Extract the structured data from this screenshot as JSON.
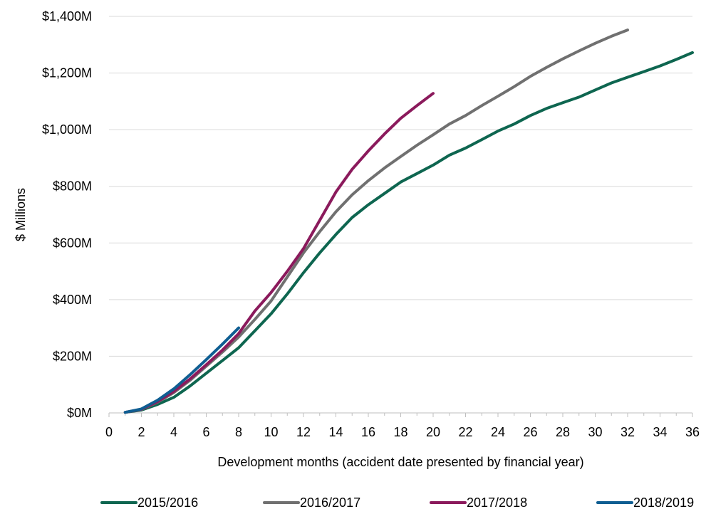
{
  "chart_data": {
    "type": "line",
    "title": "",
    "xlabel": "Development months (accident date presented by financial year)",
    "ylabel": "$ Millions",
    "xlim": [
      0,
      36
    ],
    "ylim": [
      0,
      1400
    ],
    "x_ticks": [
      0,
      2,
      4,
      6,
      8,
      10,
      12,
      14,
      16,
      18,
      20,
      22,
      24,
      26,
      28,
      30,
      32,
      34,
      36
    ],
    "y_ticks": [
      0,
      200,
      400,
      600,
      800,
      1000,
      1200,
      1400
    ],
    "y_tick_labels": [
      "$0M",
      "$200M",
      "$400M",
      "$600M",
      "$800M",
      "$1,000M",
      "$1,200M",
      "$1,400M"
    ],
    "grid": "horizontal",
    "legend_position": "bottom",
    "series": [
      {
        "name": "2015/2016",
        "color": "#0E6650",
        "x": [
          1,
          2,
          3,
          4,
          5,
          6,
          7,
          8,
          9,
          10,
          11,
          12,
          13,
          14,
          15,
          16,
          17,
          18,
          19,
          20,
          21,
          22,
          23,
          24,
          25,
          26,
          27,
          28,
          29,
          30,
          31,
          32,
          33,
          34,
          35,
          36
        ],
        "values": [
          2,
          10,
          30,
          55,
          95,
          140,
          185,
          230,
          290,
          350,
          420,
          495,
          565,
          630,
          690,
          735,
          775,
          815,
          845,
          875,
          910,
          935,
          965,
          995,
          1020,
          1050,
          1075,
          1095,
          1115,
          1140,
          1165,
          1185,
          1205,
          1225,
          1248,
          1272
        ]
      },
      {
        "name": "2016/2017",
        "color": "#707070",
        "x": [
          1,
          2,
          3,
          4,
          5,
          6,
          7,
          8,
          9,
          10,
          11,
          12,
          13,
          14,
          15,
          16,
          17,
          18,
          19,
          20,
          21,
          22,
          23,
          24,
          25,
          26,
          27,
          28,
          29,
          30,
          31,
          32
        ],
        "values": [
          2,
          12,
          38,
          72,
          115,
          165,
          215,
          268,
          330,
          395,
          480,
          565,
          640,
          710,
          770,
          820,
          865,
          905,
          945,
          982,
          1020,
          1050,
          1085,
          1118,
          1152,
          1188,
          1220,
          1250,
          1278,
          1305,
          1330,
          1352
        ]
      },
      {
        "name": "2017/2018",
        "color": "#8B1A5C",
        "x": [
          1,
          2,
          3,
          4,
          5,
          6,
          7,
          8,
          9,
          10,
          11,
          12,
          13,
          14,
          15,
          16,
          17,
          18,
          19,
          20
        ],
        "values": [
          2,
          13,
          40,
          76,
          120,
          170,
          222,
          280,
          360,
          425,
          500,
          580,
          680,
          780,
          860,
          925,
          985,
          1040,
          1085,
          1128
        ]
      },
      {
        "name": "2018/2019",
        "color": "#0F5E92",
        "x": [
          1,
          2,
          3,
          4,
          5,
          6,
          7,
          8
        ],
        "values": [
          2,
          14,
          45,
          85,
          135,
          188,
          243,
          300
        ]
      }
    ]
  }
}
